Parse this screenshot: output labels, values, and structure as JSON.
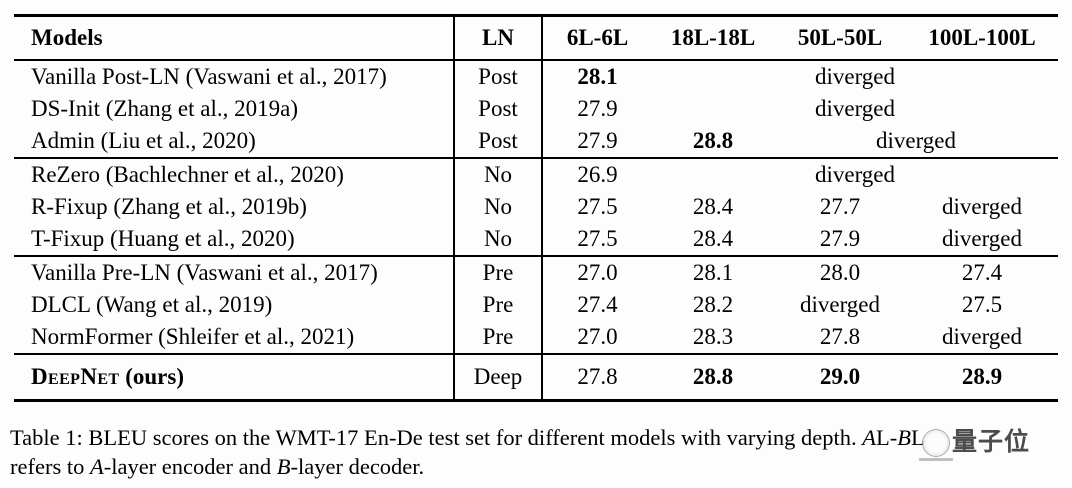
{
  "table": {
    "header": {
      "models": "Models",
      "ln": "LN",
      "columns": [
        "6L-6L",
        "18L-18L",
        "50L-50L",
        "100L-100L"
      ]
    },
    "groups": [
      {
        "name": "post-ln-group",
        "rows": [
          {
            "model": "Vanilla Post-LN (Vaswani et al., 2017)",
            "ln": "Post",
            "cells": [
              {
                "t": "28.1",
                "b": true
              },
              {
                "t": "diverged",
                "s": 3
              }
            ]
          },
          {
            "model": "DS-Init (Zhang et al., 2019a)",
            "ln": "Post",
            "cells": [
              {
                "t": "27.9"
              },
              {
                "t": "diverged",
                "s": 3
              }
            ]
          },
          {
            "model": "Admin (Liu et al., 2020)",
            "ln": "Post",
            "cells": [
              {
                "t": "27.9"
              },
              {
                "t": "28.8",
                "b": true
              },
              {
                "t": "diverged",
                "s": 2
              }
            ]
          }
        ]
      },
      {
        "name": "no-ln-group",
        "rows": [
          {
            "model": "ReZero (Bachlechner et al., 2020)",
            "ln": "No",
            "cells": [
              {
                "t": "26.9"
              },
              {
                "t": "diverged",
                "s": 3
              }
            ]
          },
          {
            "model": "R-Fixup (Zhang et al., 2019b)",
            "ln": "No",
            "cells": [
              {
                "t": "27.5"
              },
              {
                "t": "28.4"
              },
              {
                "t": "27.7"
              },
              {
                "t": "diverged"
              }
            ]
          },
          {
            "model": "T-Fixup (Huang et al., 2020)",
            "ln": "No",
            "cells": [
              {
                "t": "27.5"
              },
              {
                "t": "28.4"
              },
              {
                "t": "27.9"
              },
              {
                "t": "diverged"
              }
            ]
          }
        ]
      },
      {
        "name": "pre-ln-group",
        "rows": [
          {
            "model": "Vanilla Pre-LN (Vaswani et al., 2017)",
            "ln": "Pre",
            "cells": [
              {
                "t": "27.0"
              },
              {
                "t": "28.1"
              },
              {
                "t": "28.0"
              },
              {
                "t": "27.4"
              }
            ]
          },
          {
            "model": "DLCL (Wang et al., 2019)",
            "ln": "Pre",
            "cells": [
              {
                "t": "27.4"
              },
              {
                "t": "28.2"
              },
              {
                "t": "diverged"
              },
              {
                "t": "27.5"
              }
            ]
          },
          {
            "model": "NormFormer (Shleifer et al., 2021)",
            "ln": "Pre",
            "cells": [
              {
                "t": "27.0"
              },
              {
                "t": "28.3"
              },
              {
                "t": "27.8"
              },
              {
                "t": "diverged"
              }
            ]
          }
        ]
      },
      {
        "name": "deepnet-group",
        "deepnet": true,
        "rows": [
          {
            "model_sc": "DeepNet",
            "model_rest": " (ours)",
            "ln": "Deep",
            "cells": [
              {
                "t": "27.8"
              },
              {
                "t": "28.8",
                "b": true
              },
              {
                "t": "29.0",
                "b": true
              },
              {
                "t": "28.9",
                "b": true
              }
            ]
          }
        ]
      }
    ]
  },
  "caption": {
    "line1_main": "Table 1: BLEU scores on the WMT-17 En-De test set for different models with varying depth. ",
    "line1_a": "A",
    "line1_al": "L-",
    "line1_b": "B",
    "line1_bl": "L",
    "line2_pre": "refers to ",
    "line2_a": "A",
    "line2_mid": "-layer encoder and ",
    "line2_b": "B",
    "line2_end": "-layer decoder."
  },
  "watermark": {
    "text": "量子位"
  }
}
